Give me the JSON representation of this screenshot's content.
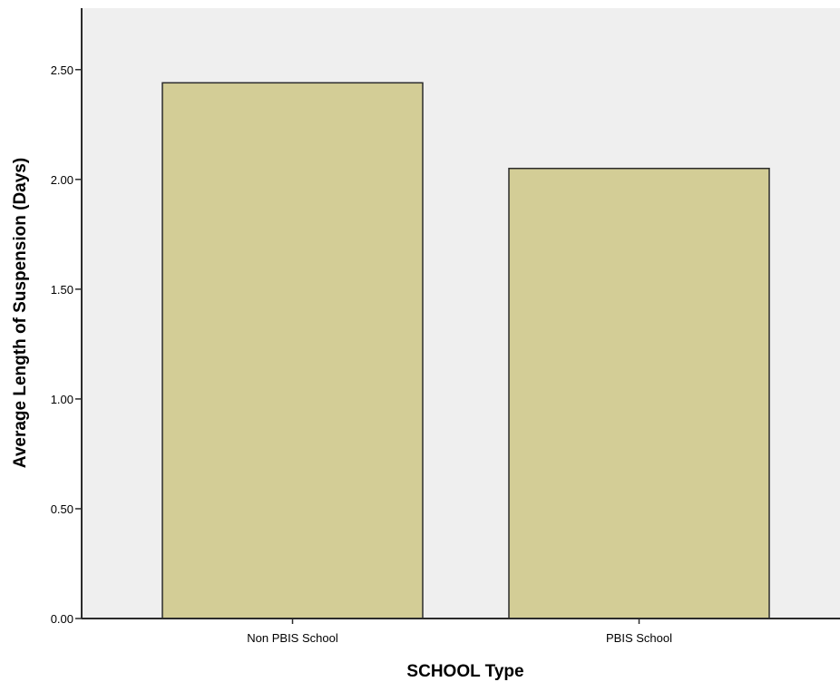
{
  "chart_data": {
    "type": "bar",
    "title": "",
    "xlabel": "SCHOOL Type",
    "ylabel": "Average Length of Suspension (Days)",
    "categories": [
      "Non PBIS School",
      "PBIS School"
    ],
    "values": [
      2.44,
      2.05
    ],
    "ylim": [
      0,
      2.78
    ],
    "yticks": [
      "0.00",
      "0.50",
      "1.00",
      "1.50",
      "2.00",
      "2.50"
    ],
    "grid": false,
    "legend": "none"
  },
  "colors": {
    "plot_background": "#efefef",
    "bar_fill": "#d3cd96",
    "bar_stroke": "#2b2b2b",
    "axis": "#2b2b2b"
  }
}
